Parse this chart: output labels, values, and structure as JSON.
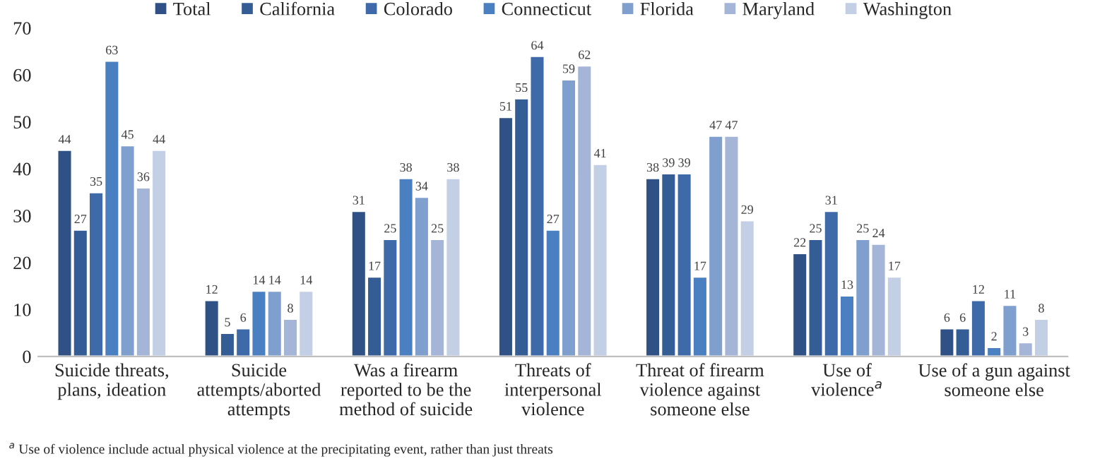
{
  "chart_data": {
    "type": "bar",
    "categories": [
      "Suicide threats, plans, ideation",
      "Suicide attempts/aborted attempts",
      "Was a firearm reported to be the method of suicide",
      "Threats of interpersonal violence",
      "Threat of firearm violence against someone else",
      "Use of violence$^{a}$",
      "Use of a gun against someone else"
    ],
    "series": [
      {
        "name": "Total",
        "color": "#2f5185",
        "values": [
          44,
          12,
          31,
          51,
          38,
          22,
          6
        ]
      },
      {
        "name": "California",
        "color": "#345d96",
        "values": [
          27,
          5,
          17,
          55,
          39,
          25,
          6
        ]
      },
      {
        "name": "Colorado",
        "color": "#3e6aaa",
        "values": [
          35,
          6,
          25,
          64,
          39,
          31,
          12
        ]
      },
      {
        "name": "Connecticut",
        "color": "#4a80c1",
        "values": [
          63,
          14,
          38,
          27,
          17,
          13,
          2
        ]
      },
      {
        "name": "Florida",
        "color": "#7f9fce",
        "values": [
          45,
          14,
          34,
          59,
          47,
          25,
          11
        ]
      },
      {
        "name": "Maryland",
        "color": "#a4b5d8",
        "values": [
          36,
          8,
          25,
          62,
          47,
          24,
          3
        ]
      },
      {
        "name": "Washington",
        "color": "#c2cfe4",
        "values": [
          44,
          14,
          38,
          41,
          29,
          17,
          8
        ]
      }
    ],
    "ylim": [
      0,
      70
    ],
    "yticks": [
      0,
      10,
      20,
      30,
      40,
      50,
      60,
      70
    ],
    "data_labels": true,
    "legend": "top",
    "grid": false,
    "annotations": [
      "$^{a}$ Use of violence include actual physical violence at the precipitating event, rather than just threats"
    ]
  }
}
